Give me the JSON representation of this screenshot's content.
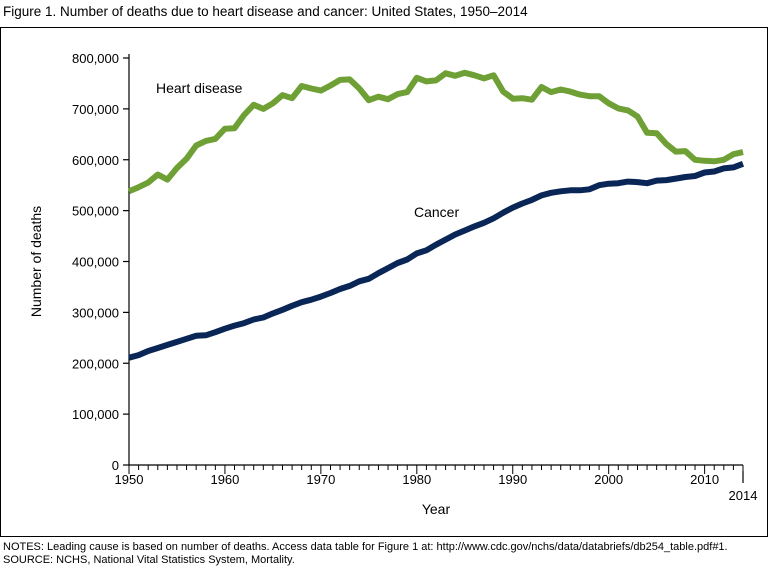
{
  "title": "Figure 1. Number of deaths due to heart disease and cancer: United States, 1950–2014",
  "notes": [
    "NOTES: Leading cause is based on number of deaths. Access data table for Figure 1 at: http://www.cdc.gov/nchs/data/databriefs/db254_table.pdf#1.",
    "SOURCE: NCHS, National Vital Statistics System, Mortality."
  ],
  "chart_data": {
    "type": "line",
    "title": "",
    "xlabel": "Year",
    "ylabel": "Number of deaths",
    "xlim": [
      1950,
      2014
    ],
    "ylim": [
      0,
      800000
    ],
    "x_ticks": [
      1950,
      1960,
      1970,
      1980,
      1990,
      2000,
      2010,
      2014
    ],
    "x_tick_labels": [
      "1950",
      "1960",
      "1970",
      "1980",
      "1990",
      "2000",
      "2010",
      "2014"
    ],
    "y_ticks": [
      0,
      100000,
      200000,
      300000,
      400000,
      500000,
      600000,
      700000,
      800000
    ],
    "y_tick_labels": [
      "0",
      "100,000",
      "200,000",
      "300,000",
      "400,000",
      "500,000",
      "600,000",
      "700,000",
      "800,000"
    ],
    "grid": false,
    "legend": "none",
    "x": [
      1950,
      1951,
      1952,
      1953,
      1954,
      1955,
      1956,
      1957,
      1958,
      1959,
      1960,
      1961,
      1962,
      1963,
      1964,
      1965,
      1966,
      1967,
      1968,
      1969,
      1970,
      1971,
      1972,
      1973,
      1974,
      1975,
      1976,
      1977,
      1978,
      1979,
      1980,
      1981,
      1982,
      1983,
      1984,
      1985,
      1986,
      1987,
      1988,
      1989,
      1990,
      1991,
      1992,
      1993,
      1994,
      1995,
      1996,
      1997,
      1998,
      1999,
      2000,
      2001,
      2002,
      2003,
      2004,
      2005,
      2006,
      2007,
      2008,
      2009,
      2010,
      2011,
      2012,
      2013,
      2014
    ],
    "series": [
      {
        "name": "Heart disease",
        "color": "#6ea035",
        "values": [
          538000,
          546000,
          555000,
          571000,
          561000,
          584000,
          602000,
          628000,
          637000,
          641000,
          661000,
          662000,
          688000,
          708000,
          700000,
          711000,
          727000,
          721000,
          745000,
          740000,
          736000,
          746000,
          757000,
          758000,
          740000,
          717000,
          724000,
          719000,
          729000,
          733000,
          761000,
          754000,
          756000,
          770000,
          765000,
          771000,
          766000,
          760000,
          766000,
          734000,
          720000,
          721000,
          718000,
          743000,
          733000,
          738000,
          734000,
          728000,
          725000,
          725000,
          711000,
          701000,
          697000,
          685000,
          653000,
          652000,
          631000,
          616000,
          617000,
          600000,
          598000,
          597000,
          600000,
          611000,
          615000
        ]
      },
      {
        "name": "Cancer",
        "color": "#0a2656",
        "values": [
          211000,
          216000,
          224000,
          230000,
          236000,
          242000,
          248000,
          254000,
          255000,
          261000,
          268000,
          274000,
          279000,
          286000,
          290000,
          298000,
          305000,
          313000,
          320000,
          325000,
          331000,
          338000,
          346000,
          352000,
          361000,
          366000,
          377000,
          387000,
          397000,
          404000,
          416000,
          422000,
          433000,
          443000,
          453000,
          461000,
          469000,
          476000,
          485000,
          496000,
          506000,
          514000,
          521000,
          530000,
          535000,
          538000,
          540000,
          540000,
          542000,
          550000,
          553000,
          554000,
          557000,
          556000,
          554000,
          559000,
          560000,
          563000,
          566000,
          568000,
          575000,
          577000,
          583000,
          585000,
          592000
        ]
      }
    ],
    "annotations": [
      "Heart disease",
      "Cancer"
    ]
  }
}
